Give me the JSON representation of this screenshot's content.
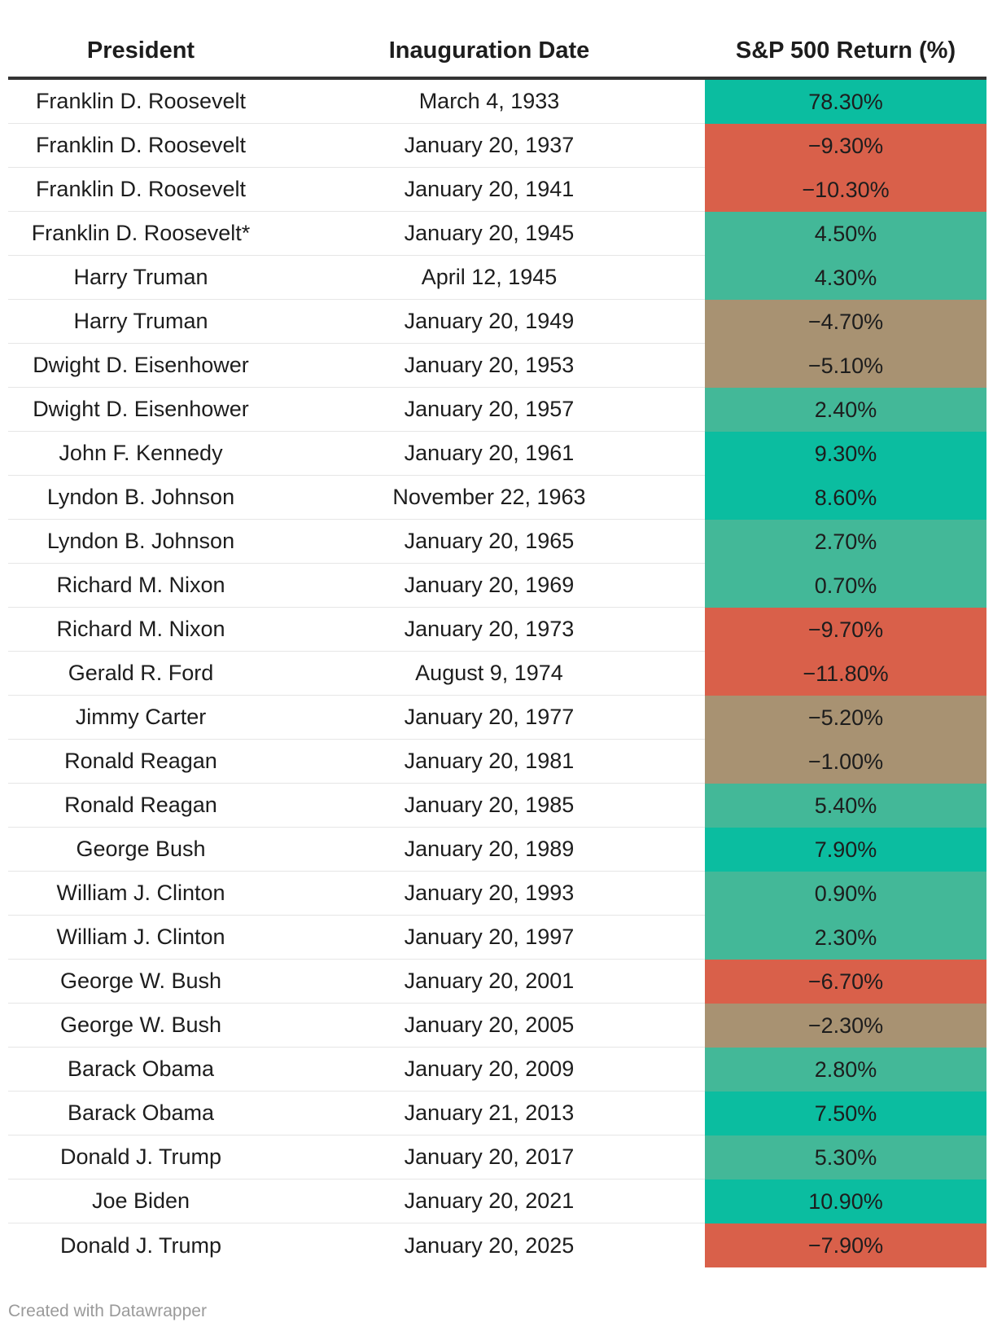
{
  "chart_data": {
    "type": "table",
    "columns": [
      "President",
      "Inauguration Date",
      "S&P 500 Return (%)"
    ],
    "rows": [
      {
        "president": "Franklin D. Roosevelt",
        "date": "March 4, 1933",
        "return_label": "78.30%",
        "return": 78.3,
        "color": "#0bbda0"
      },
      {
        "president": "Franklin D. Roosevelt",
        "date": "January 20, 1937",
        "return_label": "−9.30%",
        "return": -9.3,
        "color": "#d9604a"
      },
      {
        "president": "Franklin D. Roosevelt",
        "date": "January 20, 1941",
        "return_label": "−10.30%",
        "return": -10.3,
        "color": "#d9604a"
      },
      {
        "president": "Franklin D. Roosevelt*",
        "date": "January 20, 1945",
        "return_label": "4.50%",
        "return": 4.5,
        "color": "#43b898"
      },
      {
        "president": "Harry Truman",
        "date": "April 12, 1945",
        "return_label": "4.30%",
        "return": 4.3,
        "color": "#43b898"
      },
      {
        "president": "Harry Truman",
        "date": "January 20, 1949",
        "return_label": "−4.70%",
        "return": -4.7,
        "color": "#a89272"
      },
      {
        "president": "Dwight D. Eisenhower",
        "date": "January 20, 1953",
        "return_label": "−5.10%",
        "return": -5.1,
        "color": "#a89272"
      },
      {
        "president": "Dwight D. Eisenhower",
        "date": "January 20, 1957",
        "return_label": "2.40%",
        "return": 2.4,
        "color": "#43b898"
      },
      {
        "president": "John F. Kennedy",
        "date": "January 20, 1961",
        "return_label": "9.30%",
        "return": 9.3,
        "color": "#0bbda0"
      },
      {
        "president": "Lyndon B. Johnson",
        "date": "November 22, 1963",
        "return_label": "8.60%",
        "return": 8.6,
        "color": "#0bbda0"
      },
      {
        "president": "Lyndon B. Johnson",
        "date": "January 20, 1965",
        "return_label": "2.70%",
        "return": 2.7,
        "color": "#43b898"
      },
      {
        "president": "Richard M. Nixon",
        "date": "January 20, 1969",
        "return_label": "0.70%",
        "return": 0.7,
        "color": "#43b898"
      },
      {
        "president": "Richard M. Nixon",
        "date": "January 20, 1973",
        "return_label": "−9.70%",
        "return": -9.7,
        "color": "#d9604a"
      },
      {
        "president": "Gerald R. Ford",
        "date": "August 9, 1974",
        "return_label": "−11.80%",
        "return": -11.8,
        "color": "#d9604a"
      },
      {
        "president": "Jimmy Carter",
        "date": "January 20, 1977",
        "return_label": "−5.20%",
        "return": -5.2,
        "color": "#a89272"
      },
      {
        "president": "Ronald Reagan",
        "date": "January 20, 1981",
        "return_label": "−1.00%",
        "return": -1.0,
        "color": "#a89272"
      },
      {
        "president": "Ronald Reagan",
        "date": "January 20, 1985",
        "return_label": "5.40%",
        "return": 5.4,
        "color": "#43b898"
      },
      {
        "president": "George Bush",
        "date": "January 20, 1989",
        "return_label": "7.90%",
        "return": 7.9,
        "color": "#0bbda0"
      },
      {
        "president": "William J. Clinton",
        "date": "January 20, 1993",
        "return_label": "0.90%",
        "return": 0.9,
        "color": "#43b898"
      },
      {
        "president": "William J. Clinton",
        "date": "January 20, 1997",
        "return_label": "2.30%",
        "return": 2.3,
        "color": "#43b898"
      },
      {
        "president": "George W. Bush",
        "date": "January 20, 2001",
        "return_label": "−6.70%",
        "return": -6.7,
        "color": "#d9604a"
      },
      {
        "president": "George W. Bush",
        "date": "January 20, 2005",
        "return_label": "−2.30%",
        "return": -2.3,
        "color": "#a89272"
      },
      {
        "president": "Barack Obama",
        "date": "January 20, 2009",
        "return_label": "2.80%",
        "return": 2.8,
        "color": "#43b898"
      },
      {
        "president": "Barack Obama",
        "date": "January 21, 2013",
        "return_label": "7.50%",
        "return": 7.5,
        "color": "#0bbda0"
      },
      {
        "president": "Donald J. Trump",
        "date": "January 20, 2017",
        "return_label": "5.30%",
        "return": 5.3,
        "color": "#43b898"
      },
      {
        "president": "Joe Biden",
        "date": "January 20, 2021",
        "return_label": "10.90%",
        "return": 10.9,
        "color": "#0bbda0"
      },
      {
        "president": "Donald J. Trump",
        "date": "January 20, 2025",
        "return_label": "−7.90%",
        "return": -7.9,
        "color": "#d9604a"
      }
    ]
  },
  "footer": "Created with Datawrapper"
}
